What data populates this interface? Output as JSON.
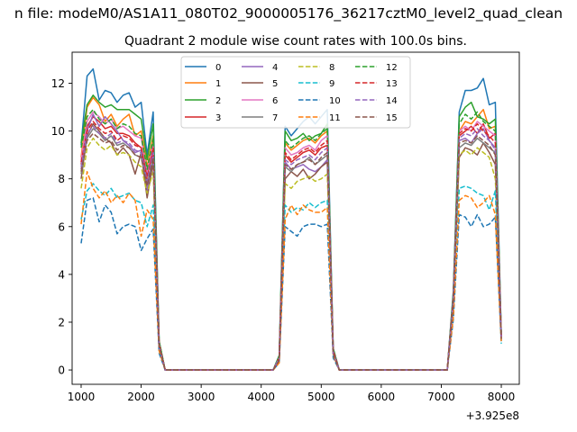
{
  "chart_data": {
    "type": "line",
    "suptitle": "n file: modeM0/AS1A11_080T02_9000005176_36217cztM0_level2_quad_clean",
    "title": "Quadrant 2 module wise count rates with 100.0s bins.",
    "xlabel": "",
    "ylabel": "",
    "x_offset_label": "+3.925e8",
    "xlim": [
      850,
      8300
    ],
    "ylim": [
      -0.6,
      13.3
    ],
    "xticks": [
      1000,
      2000,
      3000,
      4000,
      5000,
      6000,
      7000,
      8000
    ],
    "xtick_labels": [
      "1000",
      "2000",
      "3000",
      "4000",
      "5000",
      "6000",
      "7000",
      "8000"
    ],
    "yticks": [
      0,
      2,
      4,
      6,
      8,
      10,
      12
    ],
    "ytick_labels": [
      "0",
      "2",
      "4",
      "6",
      "8",
      "10",
      "12"
    ],
    "legend": {
      "location": "upper center",
      "columns": 4
    },
    "x": [
      1000,
      1100,
      1200,
      1300,
      1400,
      1500,
      1600,
      1700,
      1800,
      1900,
      2000,
      2100,
      2200,
      2300,
      2400,
      2500,
      2600,
      2700,
      2800,
      2900,
      3000,
      3100,
      3200,
      3300,
      3400,
      3500,
      3600,
      3700,
      3800,
      3900,
      4000,
      4100,
      4200,
      4300,
      4400,
      4500,
      4600,
      4700,
      4800,
      4900,
      5000,
      5100,
      5200,
      5300,
      5400,
      5500,
      5600,
      5700,
      5800,
      5900,
      6000,
      6100,
      6200,
      6300,
      6400,
      6500,
      6600,
      6700,
      6800,
      6900,
      7000,
      7100,
      7200,
      7300,
      7400,
      7500,
      7600,
      7700,
      7800,
      7900,
      8000
    ],
    "series": [
      {
        "name": "0",
        "color": "#1f77b4",
        "dash": "solid",
        "values": [
          9.4,
          12.3,
          12.6,
          11.3,
          11.7,
          11.6,
          11.2,
          11.5,
          11.6,
          11.0,
          11.2,
          9.0,
          10.8,
          1.2,
          0,
          0,
          0,
          0,
          0,
          0,
          0,
          0,
          0,
          0,
          0,
          0,
          0,
          0,
          0,
          0,
          0,
          0,
          0,
          0.6,
          10.2,
          9.8,
          10.1,
          10.4,
          10.6,
          10.3,
          10.6,
          10.9,
          0.9,
          0,
          0,
          0,
          0,
          0,
          0,
          0,
          0,
          0,
          0,
          0,
          0,
          0,
          0,
          0,
          0,
          0,
          0,
          0,
          3.3,
          10.8,
          11.7,
          11.7,
          11.8,
          12.2,
          11.1,
          11.2,
          1.5
        ]
      },
      {
        "name": "1",
        "color": "#ff7f0e",
        "dash": "solid",
        "values": [
          8.9,
          11.0,
          11.4,
          11.1,
          10.4,
          10.7,
          10.2,
          10.5,
          10.7,
          9.8,
          10.0,
          8.5,
          9.8,
          1.1,
          0,
          0,
          0,
          0,
          0,
          0,
          0,
          0,
          0,
          0,
          0,
          0,
          0,
          0,
          0,
          0,
          0,
          0,
          0,
          0.5,
          9.5,
          9.2,
          9.4,
          9.6,
          9.7,
          9.5,
          9.8,
          10.0,
          0.8,
          0,
          0,
          0,
          0,
          0,
          0,
          0,
          0,
          0,
          0,
          0,
          0,
          0,
          0,
          0,
          0,
          0,
          0,
          0,
          3.1,
          10.0,
          10.4,
          10.3,
          10.6,
          10.9,
          10.1,
          10.2,
          1.4
        ]
      },
      {
        "name": "2",
        "color": "#2ca02c",
        "dash": "solid",
        "values": [
          9.5,
          11.1,
          11.5,
          11.2,
          11.0,
          11.1,
          10.9,
          10.9,
          10.9,
          10.7,
          10.5,
          8.8,
          10.3,
          1.2,
          0,
          0,
          0,
          0,
          0,
          0,
          0,
          0,
          0,
          0,
          0,
          0,
          0,
          0,
          0,
          0,
          0,
          0,
          0,
          0.6,
          10.0,
          9.6,
          9.7,
          9.9,
          9.6,
          9.8,
          9.9,
          10.3,
          0.9,
          0,
          0,
          0,
          0,
          0,
          0,
          0,
          0,
          0,
          0,
          0,
          0,
          0,
          0,
          0,
          0,
          0,
          0,
          0,
          3.2,
          10.6,
          11.0,
          11.2,
          10.6,
          10.5,
          10.3,
          10.5,
          1.5
        ]
      },
      {
        "name": "3",
        "color": "#d62728",
        "dash": "solid",
        "values": [
          8.6,
          10.2,
          10.6,
          10.4,
          10.1,
          10.2,
          9.9,
          9.9,
          9.8,
          9.5,
          9.3,
          8.1,
          9.2,
          1.1,
          0,
          0,
          0,
          0,
          0,
          0,
          0,
          0,
          0,
          0,
          0,
          0,
          0,
          0,
          0,
          0,
          0,
          0,
          0,
          0.5,
          9.0,
          8.7,
          8.9,
          9.1,
          9.2,
          9.0,
          9.3,
          9.4,
          0.8,
          0,
          0,
          0,
          0,
          0,
          0,
          0,
          0,
          0,
          0,
          0,
          0,
          0,
          0,
          0,
          0,
          0,
          0,
          0,
          3.0,
          9.8,
          10.0,
          10.2,
          9.9,
          10.3,
          9.7,
          9.9,
          1.4
        ]
      },
      {
        "name": "4",
        "color": "#9467bd",
        "dash": "solid",
        "values": [
          8.4,
          10.0,
          10.7,
          10.2,
          10.6,
          10.3,
          10.0,
          9.6,
          9.4,
          9.1,
          9.2,
          7.5,
          9.0,
          1.0,
          0,
          0,
          0,
          0,
          0,
          0,
          0,
          0,
          0,
          0,
          0,
          0,
          0,
          0,
          0,
          0,
          0,
          0,
          0,
          0.5,
          8.7,
          8.4,
          8.5,
          8.6,
          8.4,
          8.3,
          8.5,
          8.8,
          0.8,
          0,
          0,
          0,
          0,
          0,
          0,
          0,
          0,
          0,
          0,
          0,
          0,
          0,
          0,
          0,
          0,
          0,
          0,
          0,
          3.0,
          9.6,
          9.7,
          9.5,
          9.9,
          10.1,
          9.6,
          9.3,
          1.4
        ]
      },
      {
        "name": "5",
        "color": "#8c564b",
        "dash": "solid",
        "values": [
          8.0,
          9.8,
          10.3,
          10.0,
          9.7,
          9.5,
          9.0,
          9.3,
          9.0,
          8.2,
          9.1,
          7.2,
          8.7,
          1.0,
          0,
          0,
          0,
          0,
          0,
          0,
          0,
          0,
          0,
          0,
          0,
          0,
          0,
          0,
          0,
          0,
          0,
          0,
          0,
          0.4,
          8.0,
          8.3,
          8.1,
          8.4,
          8.0,
          8.2,
          8.5,
          8.7,
          0.7,
          0,
          0,
          0,
          0,
          0,
          0,
          0,
          0,
          0,
          0,
          0,
          0,
          0,
          0,
          0,
          0,
          0,
          0,
          0,
          2.8,
          8.9,
          9.3,
          9.2,
          9.0,
          9.5,
          9.1,
          8.6,
          1.3
        ]
      },
      {
        "name": "6",
        "color": "#e377c2",
        "dash": "solid",
        "values": [
          8.8,
          10.4,
          10.8,
          10.6,
          10.3,
          10.5,
          10.1,
          10.2,
          10.0,
          9.8,
          9.7,
          8.3,
          9.5,
          1.1,
          0,
          0,
          0,
          0,
          0,
          0,
          0,
          0,
          0,
          0,
          0,
          0,
          0,
          0,
          0,
          0,
          0,
          0,
          0,
          0.5,
          9.3,
          9.0,
          9.1,
          9.3,
          9.4,
          9.2,
          9.6,
          9.8,
          0.8,
          0,
          0,
          0,
          0,
          0,
          0,
          0,
          0,
          0,
          0,
          0,
          0,
          0,
          0,
          0,
          0,
          0,
          0,
          0,
          3.0,
          10.0,
          10.2,
          10.0,
          10.4,
          10.2,
          10.0,
          9.8,
          1.4
        ]
      },
      {
        "name": "7",
        "color": "#7f7f7f",
        "dash": "solid",
        "values": [
          8.2,
          9.7,
          10.1,
          9.9,
          9.6,
          9.8,
          9.4,
          9.5,
          9.3,
          9.0,
          8.9,
          7.8,
          8.8,
          1.0,
          0,
          0,
          0,
          0,
          0,
          0,
          0,
          0,
          0,
          0,
          0,
          0,
          0,
          0,
          0,
          0,
          0,
          0,
          0,
          0.5,
          8.5,
          8.3,
          8.6,
          8.7,
          8.9,
          8.6,
          8.8,
          9.0,
          0.7,
          0,
          0,
          0,
          0,
          0,
          0,
          0,
          0,
          0,
          0,
          0,
          0,
          0,
          0,
          0,
          0,
          0,
          0,
          0,
          2.9,
          9.3,
          9.5,
          9.4,
          9.7,
          9.5,
          9.3,
          9.1,
          1.3
        ]
      },
      {
        "name": "8",
        "color": "#bcbd22",
        "dash": "dashed",
        "values": [
          7.6,
          9.3,
          9.7,
          9.4,
          9.2,
          9.4,
          9.0,
          9.1,
          9.0,
          8.7,
          8.5,
          7.4,
          8.3,
          1.0,
          0,
          0,
          0,
          0,
          0,
          0,
          0,
          0,
          0,
          0,
          0,
          0,
          0,
          0,
          0,
          0,
          0,
          0,
          0,
          0.4,
          7.8,
          7.6,
          7.9,
          8.0,
          8.1,
          7.9,
          8.0,
          8.2,
          0.7,
          0,
          0,
          0,
          0,
          0,
          0,
          0,
          0,
          0,
          0,
          0,
          0,
          0,
          0,
          0,
          0,
          0,
          0,
          0,
          2.7,
          9.0,
          9.2,
          9.0,
          9.3,
          9.1,
          8.9,
          8.0,
          1.3
        ]
      },
      {
        "name": "9",
        "color": "#17becf",
        "dash": "dashed",
        "values": [
          6.3,
          7.5,
          7.8,
          7.5,
          7.3,
          7.6,
          7.2,
          7.3,
          7.4,
          7.1,
          7.0,
          6.0,
          6.9,
          0.8,
          0,
          0,
          0,
          0,
          0,
          0,
          0,
          0,
          0,
          0,
          0,
          0,
          0,
          0,
          0,
          0,
          0,
          0,
          0,
          0.4,
          6.9,
          6.6,
          6.8,
          6.7,
          7.0,
          6.8,
          7.0,
          7.1,
          0.6,
          0,
          0,
          0,
          0,
          0,
          0,
          0,
          0,
          0,
          0,
          0,
          0,
          0,
          0,
          0,
          0,
          0,
          0,
          0,
          2.4,
          7.6,
          7.7,
          7.6,
          7.4,
          7.3,
          6.7,
          7.5,
          1.1
        ]
      },
      {
        "name": "10",
        "color": "#1f77b4",
        "dash": "dashed",
        "values": [
          5.3,
          7.1,
          7.2,
          6.2,
          6.9,
          6.6,
          5.7,
          6.0,
          6.1,
          6.0,
          5.0,
          5.5,
          5.9,
          0.7,
          0,
          0,
          0,
          0,
          0,
          0,
          0,
          0,
          0,
          0,
          0,
          0,
          0,
          0,
          0,
          0,
          0,
          0,
          0,
          0.3,
          6.0,
          5.8,
          5.6,
          6.0,
          6.1,
          6.1,
          6.0,
          6.1,
          0.5,
          0,
          0,
          0,
          0,
          0,
          0,
          0,
          0,
          0,
          0,
          0,
          0,
          0,
          0,
          0,
          0,
          0,
          0,
          0,
          2.1,
          6.5,
          6.4,
          6.0,
          6.5,
          6.0,
          6.1,
          6.4,
          1.2
        ]
      },
      {
        "name": "11",
        "color": "#ff7f0e",
        "dash": "dashed",
        "values": [
          6.1,
          8.3,
          7.6,
          7.2,
          7.5,
          7.0,
          7.3,
          7.0,
          7.4,
          7.1,
          5.6,
          6.7,
          6.3,
          0.8,
          0,
          0,
          0,
          0,
          0,
          0,
          0,
          0,
          0,
          0,
          0,
          0,
          0,
          0,
          0,
          0,
          0,
          0,
          0,
          0.3,
          6.3,
          6.9,
          6.5,
          6.9,
          6.7,
          6.6,
          6.6,
          6.8,
          0.6,
          0,
          0,
          0,
          0,
          0,
          0,
          0,
          0,
          0,
          0,
          0,
          0,
          0,
          0,
          0,
          0,
          0,
          0,
          0,
          2.2,
          7.1,
          7.3,
          7.2,
          6.8,
          7.0,
          7.3,
          6.5,
          1.2
        ]
      },
      {
        "name": "12",
        "color": "#2ca02c",
        "dash": "dashed",
        "values": [
          9.3,
          10.6,
          10.9,
          10.5,
          10.3,
          10.5,
          10.1,
          10.3,
          10.2,
          9.9,
          9.8,
          8.4,
          9.7,
          1.2,
          0,
          0,
          0,
          0,
          0,
          0,
          0,
          0,
          0,
          0,
          0,
          0,
          0,
          0,
          0,
          0,
          0,
          0,
          0,
          0.5,
          9.6,
          9.3,
          9.5,
          9.7,
          9.8,
          9.6,
          9.9,
          10.1,
          0.8,
          0,
          0,
          0,
          0,
          0,
          0,
          0,
          0,
          0,
          0,
          0,
          0,
          0,
          0,
          0,
          0,
          0,
          0,
          0,
          3.1,
          10.3,
          10.7,
          10.5,
          10.8,
          10.4,
          10.2,
          10.0,
          1.5
        ]
      },
      {
        "name": "13",
        "color": "#d62728",
        "dash": "dashed",
        "values": [
          8.7,
          10.0,
          10.4,
          10.1,
          9.9,
          10.0,
          9.6,
          9.8,
          9.7,
          9.4,
          9.3,
          8.0,
          9.3,
          1.1,
          0,
          0,
          0,
          0,
          0,
          0,
          0,
          0,
          0,
          0,
          0,
          0,
          0,
          0,
          0,
          0,
          0,
          0,
          0,
          0.5,
          9.1,
          8.8,
          9.0,
          9.2,
          9.3,
          9.1,
          9.4,
          9.6,
          0.8,
          0,
          0,
          0,
          0,
          0,
          0,
          0,
          0,
          0,
          0,
          0,
          0,
          0,
          0,
          0,
          0,
          0,
          0,
          0,
          3.0,
          9.9,
          10.1,
          10.0,
          10.3,
          10.0,
          9.8,
          9.5,
          1.4
        ]
      },
      {
        "name": "14",
        "color": "#9467bd",
        "dash": "dashed",
        "values": [
          8.5,
          9.9,
          10.2,
          9.9,
          9.7,
          9.9,
          9.5,
          9.6,
          9.5,
          9.2,
          9.1,
          7.9,
          9.1,
          1.0,
          0,
          0,
          0,
          0,
          0,
          0,
          0,
          0,
          0,
          0,
          0,
          0,
          0,
          0,
          0,
          0,
          0,
          0,
          0,
          0.5,
          8.8,
          8.6,
          8.8,
          8.9,
          9.0,
          8.8,
          9.1,
          9.3,
          0.7,
          0,
          0,
          0,
          0,
          0,
          0,
          0,
          0,
          0,
          0,
          0,
          0,
          0,
          0,
          0,
          0,
          0,
          0,
          0,
          2.9,
          9.7,
          9.9,
          9.8,
          10.1,
          9.8,
          9.6,
          9.2,
          1.4
        ]
      },
      {
        "name": "15",
        "color": "#8c564b",
        "dash": "dashed",
        "values": [
          8.3,
          9.6,
          9.9,
          9.7,
          9.5,
          9.6,
          9.2,
          9.4,
          9.3,
          9.0,
          8.9,
          7.7,
          8.9,
          1.0,
          0,
          0,
          0,
          0,
          0,
          0,
          0,
          0,
          0,
          0,
          0,
          0,
          0,
          0,
          0,
          0,
          0,
          0,
          0,
          0.4,
          8.6,
          8.4,
          8.6,
          8.7,
          8.8,
          8.6,
          8.9,
          9.1,
          0.7,
          0,
          0,
          0,
          0,
          0,
          0,
          0,
          0,
          0,
          0,
          0,
          0,
          0,
          0,
          0,
          0,
          0,
          0,
          0,
          2.8,
          9.5,
          9.6,
          9.5,
          9.8,
          9.6,
          9.4,
          9.0,
          1.3
        ]
      }
    ]
  }
}
